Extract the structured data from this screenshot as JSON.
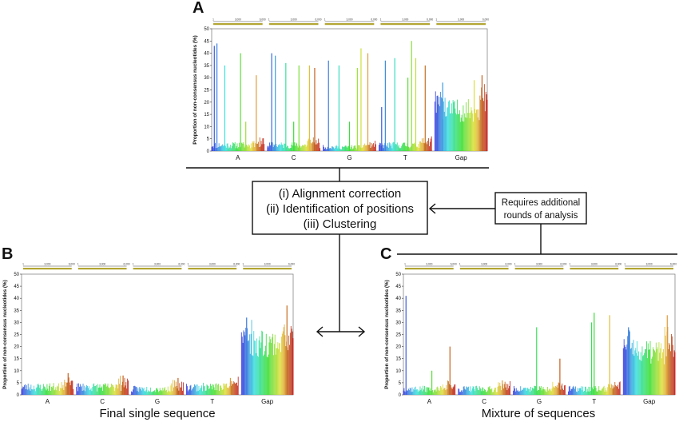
{
  "panels": {
    "A": {
      "letter": "A",
      "caption": ""
    },
    "B": {
      "letter": "B",
      "caption": "Final single sequence"
    },
    "C": {
      "letter": "C",
      "caption": "Mixture of sequences"
    }
  },
  "process_box": {
    "lines": [
      "(i) Alignment correction",
      "(ii) Identification of positions",
      "(iii) Clustering"
    ]
  },
  "feedback_box": {
    "lines": [
      "Requires additional",
      "rounds of analysis"
    ]
  },
  "ruler_ticks": [
    "1",
    "3,000",
    "6,000"
  ],
  "chart_data": [
    {
      "type": "bar",
      "panel": "A",
      "ylabel": "Proportion of non-consensus nucleotides (%)",
      "ylim": [
        0,
        50
      ],
      "yticks": [
        0,
        5,
        10,
        15,
        20,
        25,
        30,
        35,
        40,
        45,
        50
      ],
      "categories": [
        "A",
        "C",
        "G",
        "T",
        "Gap"
      ],
      "baseline_approx": [
        3,
        3,
        2,
        3,
        17
      ],
      "spikes": [
        {
          "category": "A",
          "x": 0.05,
          "value": 43
        },
        {
          "category": "A",
          "x": 0.1,
          "value": 44
        },
        {
          "category": "A",
          "x": 0.25,
          "value": 35
        },
        {
          "category": "A",
          "x": 0.55,
          "value": 40
        },
        {
          "category": "A",
          "x": 0.65,
          "value": 12
        },
        {
          "category": "A",
          "x": 0.85,
          "value": 31
        },
        {
          "category": "C",
          "x": 0.08,
          "value": 40
        },
        {
          "category": "C",
          "x": 0.15,
          "value": 39
        },
        {
          "category": "C",
          "x": 0.35,
          "value": 36
        },
        {
          "category": "C",
          "x": 0.5,
          "value": 12
        },
        {
          "category": "C",
          "x": 0.6,
          "value": 35
        },
        {
          "category": "C",
          "x": 0.8,
          "value": 35
        },
        {
          "category": "C",
          "x": 0.9,
          "value": 34
        },
        {
          "category": "G",
          "x": 0.1,
          "value": 37
        },
        {
          "category": "G",
          "x": 0.3,
          "value": 35
        },
        {
          "category": "G",
          "x": 0.5,
          "value": 12
        },
        {
          "category": "G",
          "x": 0.65,
          "value": 34
        },
        {
          "category": "G",
          "x": 0.72,
          "value": 42
        },
        {
          "category": "G",
          "x": 0.85,
          "value": 40
        },
        {
          "category": "T",
          "x": 0.05,
          "value": 18
        },
        {
          "category": "T",
          "x": 0.12,
          "value": 37
        },
        {
          "category": "T",
          "x": 0.3,
          "value": 38
        },
        {
          "category": "T",
          "x": 0.55,
          "value": 30
        },
        {
          "category": "T",
          "x": 0.62,
          "value": 45
        },
        {
          "category": "T",
          "x": 0.7,
          "value": 38
        },
        {
          "category": "T",
          "x": 0.88,
          "value": 35
        },
        {
          "category": "Gap",
          "x": 0.15,
          "value": 28
        },
        {
          "category": "Gap",
          "x": 0.75,
          "value": 29
        },
        {
          "category": "Gap",
          "x": 0.9,
          "value": 31
        }
      ]
    },
    {
      "type": "bar",
      "panel": "B",
      "ylabel": "Proportion of non-consensus nucleotides (%)",
      "ylim": [
        0,
        50
      ],
      "yticks": [
        0,
        5,
        10,
        15,
        20,
        25,
        30,
        35,
        40,
        45,
        50
      ],
      "categories": [
        "A",
        "C",
        "G",
        "T",
        "Gap"
      ],
      "baseline_approx": [
        4,
        4,
        3,
        4,
        22
      ],
      "spikes": [
        {
          "category": "A",
          "x": 0.9,
          "value": 9
        },
        {
          "category": "C",
          "x": 0.9,
          "value": 8
        },
        {
          "category": "G",
          "x": 0.9,
          "value": 7
        },
        {
          "category": "T",
          "x": 0.85,
          "value": 7
        },
        {
          "category": "Gap",
          "x": 0.1,
          "value": 32
        },
        {
          "category": "Gap",
          "x": 0.88,
          "value": 37
        }
      ]
    },
    {
      "type": "bar",
      "panel": "C",
      "ylabel": "Proportion of non-consensus nucleotides (%)",
      "ylim": [
        0,
        50
      ],
      "yticks": [
        0,
        5,
        10,
        15,
        20,
        25,
        30,
        35,
        40,
        45,
        50
      ],
      "categories": [
        "A",
        "C",
        "G",
        "T",
        "Gap"
      ],
      "baseline_approx": [
        3,
        3,
        3,
        3,
        18
      ],
      "spikes": [
        {
          "category": "A",
          "x": 0.05,
          "value": 41
        },
        {
          "category": "A",
          "x": 0.55,
          "value": 10
        },
        {
          "category": "A",
          "x": 0.9,
          "value": 20
        },
        {
          "category": "C",
          "x": 0.85,
          "value": 6
        },
        {
          "category": "G",
          "x": 0.45,
          "value": 28
        },
        {
          "category": "G",
          "x": 0.9,
          "value": 15
        },
        {
          "category": "T",
          "x": 0.45,
          "value": 30
        },
        {
          "category": "T",
          "x": 0.5,
          "value": 34
        },
        {
          "category": "T",
          "x": 0.8,
          "value": 33
        },
        {
          "category": "Gap",
          "x": 0.1,
          "value": 28
        },
        {
          "category": "Gap",
          "x": 0.85,
          "value": 33
        }
      ]
    }
  ]
}
